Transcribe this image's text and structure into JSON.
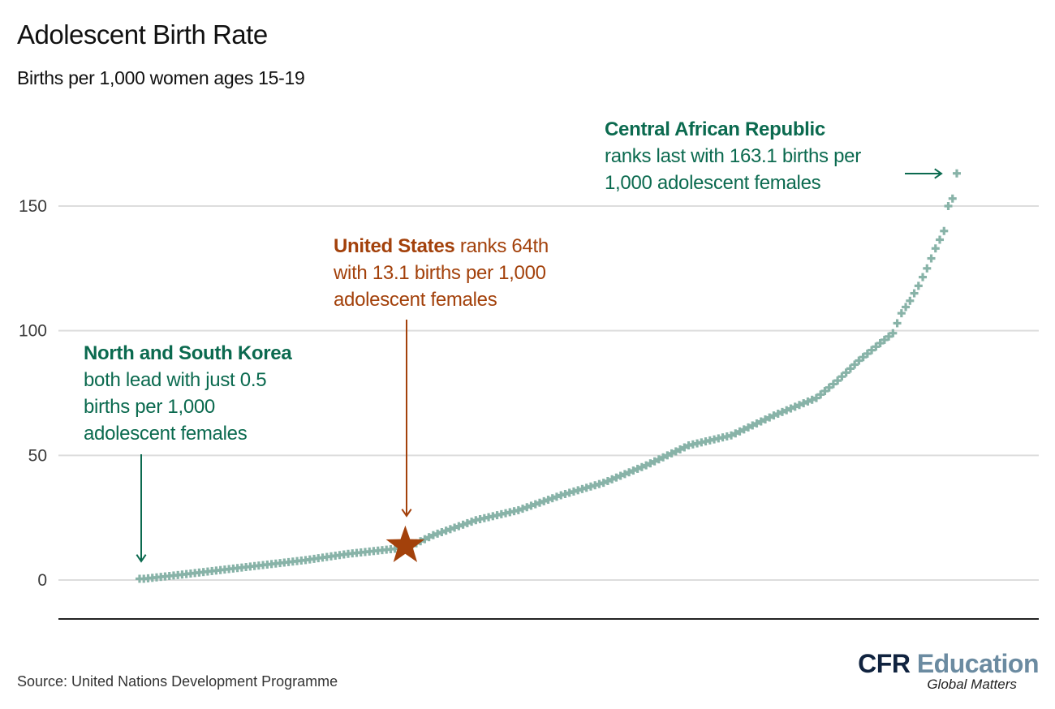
{
  "header": {
    "title": "Adolescent Birth Rate",
    "subtitle": "Births per 1,000 women ages 15-19"
  },
  "annotations": {
    "car": {
      "bold": "Central African Republic",
      "line2": "ranks last with 163.1 births per",
      "line3": "1,000 adolescent females"
    },
    "us": {
      "bold": "United States",
      "line1_rest": " ranks 64th",
      "line2": "with 13.1 births per 1,000",
      "line3": "adolescent females"
    },
    "korea": {
      "bold": "North and South Korea",
      "line2": "both lead with just 0.5",
      "line3": "births per 1,000",
      "line4": "adolescent females"
    }
  },
  "footer": {
    "source": "Source: United Nations Development Programme",
    "logo_primary": "CFR",
    "logo_secondary": " Education",
    "logo_tagline": "Global Matters"
  },
  "colors": {
    "points": "#88b3a8",
    "highlight": "#a3410b",
    "annotation_green": "#0b6a4f",
    "gridline": "#dddddd",
    "baseline": "#222222"
  },
  "chart_data": {
    "type": "scatter",
    "title": "Adolescent Birth Rate",
    "subtitle": "Births per 1,000 women ages 15-19",
    "xlabel": "",
    "ylabel": "",
    "x_description": "Countries ranked from lowest to highest adolescent birth rate",
    "ylim": [
      -15,
      170
    ],
    "yticks": [
      0,
      50,
      100,
      150
    ],
    "ytick_labels": [
      "0",
      "50",
      "100",
      "150"
    ],
    "grid": true,
    "marker": "plus",
    "n_countries": 193,
    "highlights": [
      {
        "label": "North and South Korea",
        "rank": 1,
        "value": 0.5,
        "marker": "arrow"
      },
      {
        "label": "United States",
        "rank": 64,
        "value": 13.1,
        "marker": "star"
      },
      {
        "label": "Central African Republic",
        "rank": 193,
        "value": 163.1,
        "marker": "arrow"
      }
    ],
    "anchors": {
      "rank": [
        1,
        2,
        10,
        20,
        30,
        40,
        50,
        64,
        70,
        80,
        90,
        100,
        110,
        120,
        130,
        140,
        150,
        160,
        165,
        170,
        175,
        178,
        180,
        182,
        184,
        186,
        188,
        190,
        191,
        192,
        193
      ],
      "value": [
        0.5,
        0.5,
        2,
        4,
        6,
        8,
        10.5,
        13.1,
        18,
        24,
        28,
        34,
        39,
        46,
        54,
        58,
        66,
        73,
        80,
        88,
        95,
        99,
        107,
        112,
        118,
        125,
        133,
        140,
        150,
        153,
        163.1
      ]
    },
    "source": "Source: United Nations Development Programme"
  }
}
